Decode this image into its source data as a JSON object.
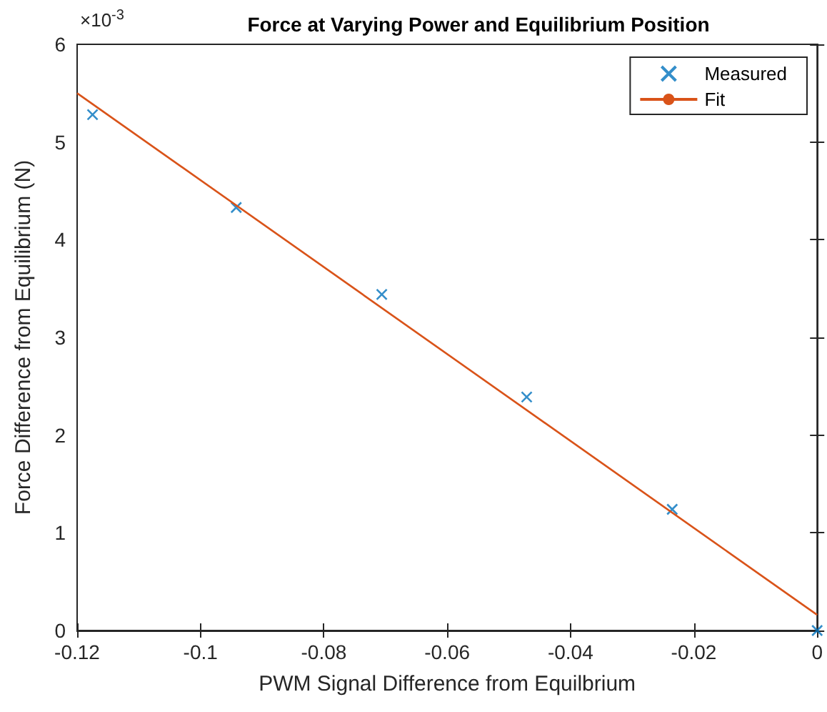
{
  "chart_data": {
    "type": "scatter",
    "title": "Force at Varying Power and Equilibrium Position",
    "xlabel": "PWM Signal Difference from Equilbrium",
    "ylabel": "Force Difference from Equilibrium (N)",
    "annotations": [
      "×10$^{-3}$"
    ],
    "xlim": [
      -0.12,
      0
    ],
    "xticks": [
      -0.12,
      -0.1,
      -0.08,
      -0.06,
      -0.04,
      -0.02,
      0
    ],
    "ylim": [
      0,
      6
    ],
    "yticks": [
      0,
      1,
      2,
      3,
      4,
      5,
      6
    ],
    "grid": false,
    "legend": "top right",
    "series": [
      {
        "name": "Measured",
        "marker": "cross",
        "color": "#0072bd",
        "x": [
          -0.1175,
          -0.0942,
          -0.0706,
          -0.0471,
          -0.0235,
          0
        ],
        "values": [
          5.28,
          4.33,
          3.44,
          2.39,
          1.24,
          0
        ]
      },
      {
        "name": "Fit",
        "type": "line",
        "marker": "none",
        "line_style": "solid",
        "color": "#d95319",
        "x": [
          -0.12,
          0
        ],
        "values": [
          5.5,
          0.16
        ]
      }
    ]
  }
}
